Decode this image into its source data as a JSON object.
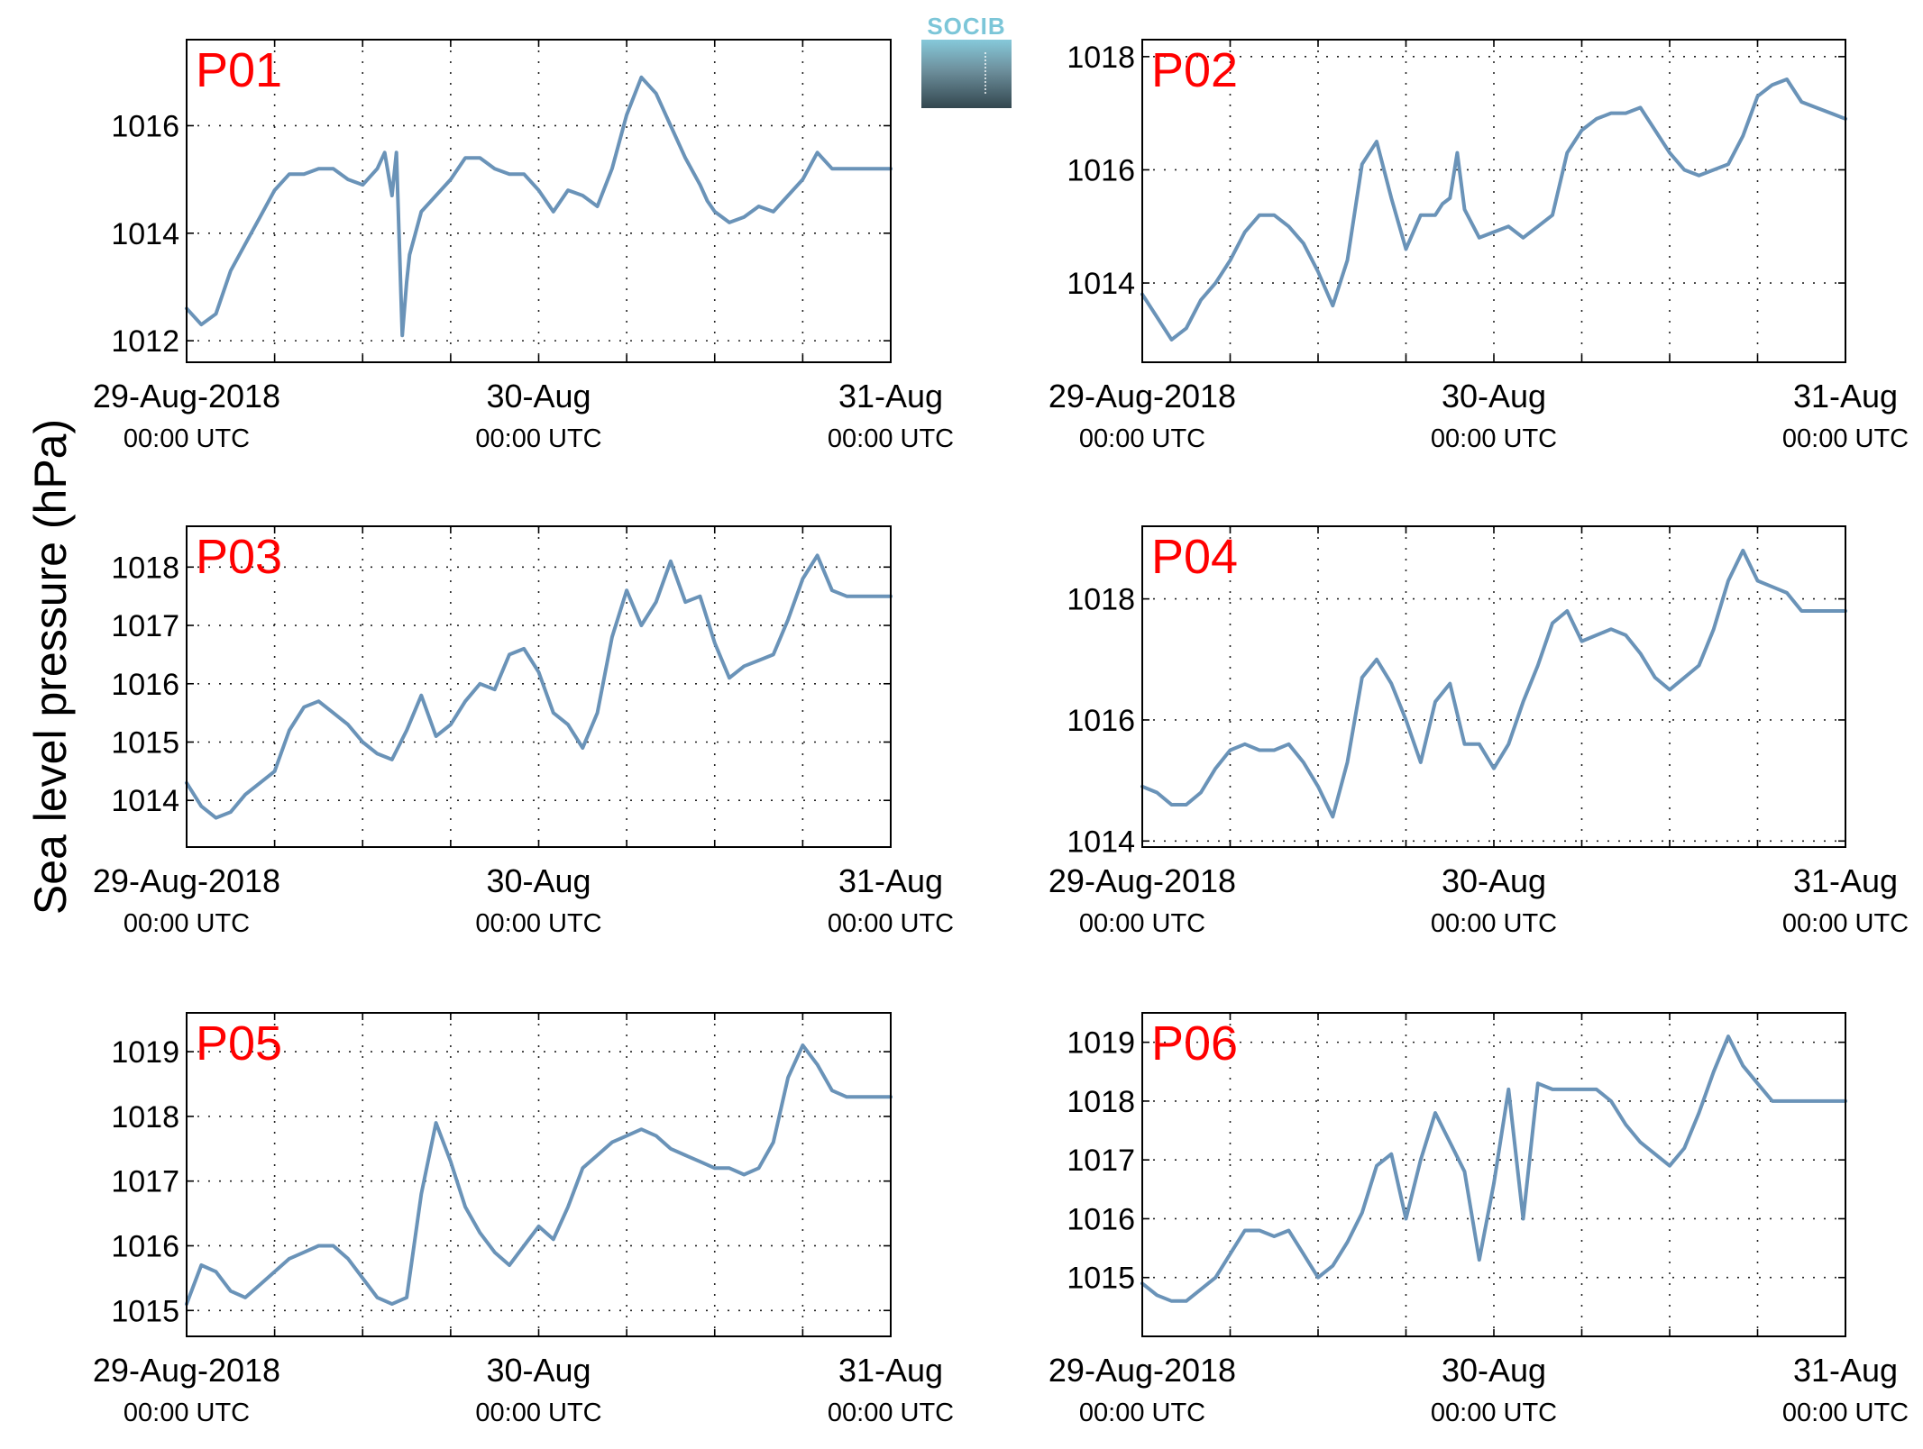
{
  "figure": {
    "ylabel": "Sea level pressure (hPa)",
    "logo_text": "SOCIB",
    "line_color": "#6a93b8",
    "panel_label_color": "#ff0000",
    "utc_label": "00:00 UTC"
  },
  "chart_data": [
    {
      "type": "line",
      "title": "P01",
      "x_tick_labels": [
        "29-Aug-2018",
        "30-Aug",
        "31-Aug"
      ],
      "x_tick_sublabels": [
        "00:00 UTC",
        "00:00 UTC",
        "00:00 UTC"
      ],
      "xlim": [
        0,
        48
      ],
      "ylim": [
        1011.6,
        1017.6
      ],
      "yticks": [
        1012,
        1014,
        1016
      ],
      "grid": true,
      "series": [
        {
          "x": [
            0,
            1,
            2,
            3,
            4,
            5,
            6,
            7,
            8,
            9,
            10,
            11,
            12,
            13,
            13.5,
            14,
            14.3,
            14.7,
            15,
            15.2,
            15.5,
            16,
            17,
            18,
            19,
            20,
            21,
            22,
            23,
            24,
            25,
            26,
            27,
            28,
            29,
            30,
            31,
            32,
            33,
            34,
            35,
            35.5,
            36,
            37,
            38,
            39,
            40,
            41,
            42,
            43,
            44,
            45,
            46,
            47,
            48
          ],
          "y": [
            1012.6,
            1012.3,
            1012.5,
            1013.3,
            1013.8,
            1014.3,
            1014.8,
            1015.1,
            1015.1,
            1015.2,
            1015.2,
            1015.0,
            1014.9,
            1015.2,
            1015.5,
            1014.7,
            1015.5,
            1012.1,
            1013.1,
            1013.6,
            1013.9,
            1014.4,
            1014.7,
            1015.0,
            1015.4,
            1015.4,
            1015.2,
            1015.1,
            1015.1,
            1014.8,
            1014.4,
            1014.8,
            1014.7,
            1014.5,
            1015.2,
            1016.2,
            1016.9,
            1016.6,
            1016.0,
            1015.4,
            1014.9,
            1014.6,
            1014.4,
            1014.2,
            1014.3,
            1014.5,
            1014.4,
            1014.7,
            1015.0,
            1015.5,
            1015.2,
            1015.2,
            1015.2,
            1015.2,
            1015.2
          ]
        }
      ]
    },
    {
      "type": "line",
      "title": "P02",
      "x_tick_labels": [
        "29-Aug-2018",
        "30-Aug",
        "31-Aug"
      ],
      "x_tick_sublabels": [
        "00:00 UTC",
        "00:00 UTC",
        "00:00 UTC"
      ],
      "xlim": [
        0,
        48
      ],
      "ylim": [
        1012.6,
        1018.3
      ],
      "yticks": [
        1014,
        1016,
        1018
      ],
      "grid": true,
      "series": [
        {
          "x": [
            0,
            1,
            2,
            3,
            4,
            5,
            6,
            7,
            8,
            9,
            10,
            11,
            12,
            13,
            14,
            15,
            16,
            17,
            18,
            19,
            20,
            20.5,
            21,
            21.5,
            22,
            23,
            24,
            25,
            26,
            27,
            28,
            29,
            30,
            31,
            32,
            33,
            34,
            35,
            36,
            37,
            38,
            39,
            40,
            41,
            42,
            43,
            44,
            45,
            46,
            47,
            48
          ],
          "y": [
            1013.8,
            1013.4,
            1013.0,
            1013.2,
            1013.7,
            1014.0,
            1014.4,
            1014.9,
            1015.2,
            1015.2,
            1015.0,
            1014.7,
            1014.2,
            1013.6,
            1014.4,
            1016.1,
            1016.5,
            1015.5,
            1014.6,
            1015.2,
            1015.2,
            1015.4,
            1015.5,
            1016.3,
            1015.3,
            1014.8,
            1014.9,
            1015.0,
            1014.8,
            1015.0,
            1015.2,
            1016.3,
            1016.7,
            1016.9,
            1017.0,
            1017.0,
            1017.1,
            1016.7,
            1016.3,
            1016.0,
            1015.9,
            1016.0,
            1016.1,
            1016.6,
            1017.3,
            1017.5,
            1017.6,
            1017.2,
            1017.1,
            1017.0,
            1016.9
          ]
        }
      ]
    },
    {
      "type": "line",
      "title": "P03",
      "x_tick_labels": [
        "29-Aug-2018",
        "30-Aug",
        "31-Aug"
      ],
      "x_tick_sublabels": [
        "00:00 UTC",
        "00:00 UTC",
        "00:00 UTC"
      ],
      "xlim": [
        0,
        48
      ],
      "ylim": [
        1013.2,
        1018.7
      ],
      "yticks": [
        1014,
        1015,
        1016,
        1017,
        1018
      ],
      "grid": true,
      "series": [
        {
          "x": [
            0,
            1,
            2,
            3,
            4,
            5,
            6,
            7,
            8,
            9,
            10,
            11,
            12,
            13,
            14,
            15,
            16,
            17,
            18,
            19,
            20,
            21,
            22,
            23,
            24,
            25,
            26,
            27,
            28,
            29,
            30,
            31,
            32,
            33,
            34,
            35,
            36,
            37,
            38,
            39,
            40,
            41,
            42,
            43,
            44,
            45,
            46,
            47,
            48
          ],
          "y": [
            1014.3,
            1013.9,
            1013.7,
            1013.8,
            1014.1,
            1014.3,
            1014.5,
            1015.2,
            1015.6,
            1015.7,
            1015.5,
            1015.3,
            1015.0,
            1014.8,
            1014.7,
            1015.2,
            1015.8,
            1015.1,
            1015.3,
            1015.7,
            1016.0,
            1015.9,
            1016.5,
            1016.6,
            1016.2,
            1015.5,
            1015.3,
            1014.9,
            1015.5,
            1016.8,
            1017.6,
            1017.0,
            1017.4,
            1018.1,
            1017.4,
            1017.5,
            1016.7,
            1016.1,
            1016.3,
            1016.4,
            1016.5,
            1017.1,
            1017.8,
            1018.2,
            1017.6,
            1017.5,
            1017.5,
            1017.5,
            1017.5
          ]
        }
      ]
    },
    {
      "type": "line",
      "title": "P04",
      "x_tick_labels": [
        "29-Aug-2018",
        "30-Aug",
        "31-Aug"
      ],
      "x_tick_sublabels": [
        "00:00 UTC",
        "00:00 UTC",
        "00:00 UTC"
      ],
      "xlim": [
        0,
        48
      ],
      "ylim": [
        1013.9,
        1019.2
      ],
      "yticks": [
        1014,
        1016,
        1018
      ],
      "grid": true,
      "series": [
        {
          "x": [
            0,
            1,
            2,
            3,
            4,
            5,
            6,
            7,
            8,
            9,
            10,
            11,
            12,
            13,
            14,
            15,
            16,
            17,
            18,
            19,
            20,
            21,
            22,
            23,
            24,
            25,
            26,
            27,
            28,
            29,
            30,
            31,
            32,
            33,
            34,
            35,
            36,
            37,
            38,
            39,
            40,
            41,
            42,
            43,
            44,
            45,
            46,
            47,
            48
          ],
          "y": [
            1014.9,
            1014.8,
            1014.6,
            1014.6,
            1014.8,
            1015.2,
            1015.5,
            1015.6,
            1015.5,
            1015.5,
            1015.6,
            1015.3,
            1014.9,
            1014.4,
            1015.3,
            1016.7,
            1017.0,
            1016.6,
            1016.0,
            1015.3,
            1016.3,
            1016.6,
            1015.6,
            1015.6,
            1015.2,
            1015.6,
            1016.3,
            1016.9,
            1017.6,
            1017.8,
            1017.3,
            1017.4,
            1017.5,
            1017.4,
            1017.1,
            1016.7,
            1016.5,
            1016.7,
            1016.9,
            1017.5,
            1018.3,
            1018.8,
            1018.3,
            1018.2,
            1018.1,
            1017.8,
            1017.8,
            1017.8,
            1017.8
          ]
        }
      ]
    },
    {
      "type": "line",
      "title": "P05",
      "x_tick_labels": [
        "29-Aug-2018",
        "30-Aug",
        "31-Aug"
      ],
      "x_tick_sublabels": [
        "00:00 UTC",
        "00:00 UTC",
        "00:00 UTC"
      ],
      "xlim": [
        0,
        48
      ],
      "ylim": [
        1014.6,
        1019.6
      ],
      "yticks": [
        1015,
        1016,
        1017,
        1018,
        1019
      ],
      "grid": true,
      "series": [
        {
          "x": [
            0,
            1,
            2,
            3,
            4,
            5,
            6,
            7,
            8,
            9,
            10,
            11,
            12,
            13,
            14,
            15,
            16,
            17,
            18,
            19,
            20,
            21,
            22,
            23,
            24,
            25,
            26,
            27,
            28,
            29,
            30,
            31,
            32,
            33,
            34,
            35,
            36,
            37,
            38,
            39,
            40,
            41,
            42,
            43,
            44,
            45,
            46,
            47,
            48
          ],
          "y": [
            1015.1,
            1015.7,
            1015.6,
            1015.3,
            1015.2,
            1015.4,
            1015.6,
            1015.8,
            1015.9,
            1016.0,
            1016.0,
            1015.8,
            1015.5,
            1015.2,
            1015.1,
            1015.2,
            1016.8,
            1017.9,
            1017.3,
            1016.6,
            1016.2,
            1015.9,
            1015.7,
            1016.0,
            1016.3,
            1016.1,
            1016.6,
            1017.2,
            1017.4,
            1017.6,
            1017.7,
            1017.8,
            1017.7,
            1017.5,
            1017.4,
            1017.3,
            1017.2,
            1017.2,
            1017.1,
            1017.2,
            1017.6,
            1018.6,
            1019.1,
            1018.8,
            1018.4,
            1018.3,
            1018.3,
            1018.3,
            1018.3
          ]
        }
      ]
    },
    {
      "type": "line",
      "title": "P06",
      "x_tick_labels": [
        "29-Aug-2018",
        "30-Aug",
        "31-Aug"
      ],
      "x_tick_sublabels": [
        "00:00 UTC",
        "00:00 UTC",
        "00:00 UTC"
      ],
      "xlim": [
        0,
        48
      ],
      "ylim": [
        1014.0,
        1019.5
      ],
      "yticks": [
        1015,
        1016,
        1017,
        1018,
        1019
      ],
      "grid": true,
      "series": [
        {
          "x": [
            0,
            1,
            2,
            3,
            4,
            5,
            6,
            7,
            8,
            9,
            10,
            11,
            12,
            13,
            14,
            15,
            16,
            17,
            18,
            19,
            20,
            21,
            22,
            23,
            24,
            25,
            26,
            27,
            28,
            29,
            30,
            31,
            32,
            33,
            34,
            35,
            36,
            37,
            38,
            39,
            40,
            41,
            42,
            43,
            44,
            45,
            46,
            47,
            48
          ],
          "y": [
            1014.9,
            1014.7,
            1014.6,
            1014.6,
            1014.8,
            1015.0,
            1015.4,
            1015.8,
            1015.8,
            1015.7,
            1015.8,
            1015.4,
            1015.0,
            1015.2,
            1015.6,
            1016.1,
            1016.9,
            1017.1,
            1016.0,
            1017.0,
            1017.8,
            1017.3,
            1016.8,
            1015.3,
            1016.6,
            1018.2,
            1016.0,
            1018.3,
            1018.2,
            1018.2,
            1018.2,
            1018.2,
            1018.0,
            1017.6,
            1017.3,
            1017.1,
            1016.9,
            1017.2,
            1017.8,
            1018.5,
            1019.1,
            1018.6,
            1018.3,
            1018.0,
            1018.0,
            1018.0,
            1018.0,
            1018.0,
            1018.0
          ]
        }
      ]
    }
  ]
}
